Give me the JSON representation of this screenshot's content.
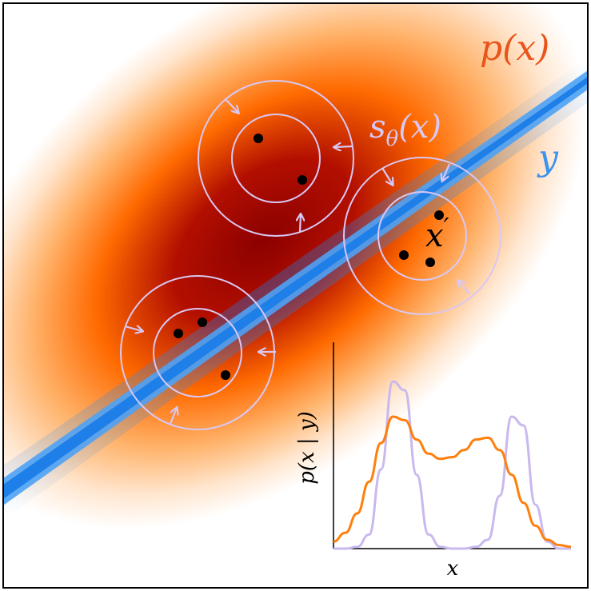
{
  "labels": {
    "density": "p(x)",
    "score": "s",
    "score_sub": "θ",
    "score_arg": "(x)",
    "measurement": "y",
    "sample": "x",
    "sample_prime": "′",
    "inset_ylabel": "p(x | y)",
    "inset_xlabel": "x"
  },
  "colors": {
    "density_core": "#9e0000",
    "density_mid": "#ff6a00",
    "density_edge": "#ffffff",
    "line": "#2f8cf0",
    "circles": "#d8c8f4",
    "points": "#000000",
    "posterior": "#ff7f0e",
    "prior_fit": "#c9b9ee"
  },
  "icons": [
    "inward-arrow-icon"
  ],
  "inset_chart": {
    "type": "line",
    "xlabel": "x",
    "ylabel": "p(x | y)",
    "series": [
      {
        "color": "#c9b9ee",
        "x": [
          0,
          0.05,
          0.1,
          0.15,
          0.2,
          0.25,
          0.3,
          0.35,
          0.4,
          0.45,
          0.5,
          0.55,
          0.6,
          0.65,
          0.7,
          0.75,
          0.8,
          0.85,
          0.9,
          0.95,
          1
        ],
        "y": [
          0,
          0,
          0.01,
          0.08,
          0.45,
          0.95,
          0.9,
          0.42,
          0.08,
          0.01,
          0,
          0,
          0.01,
          0.05,
          0.3,
          0.75,
          0.7,
          0.25,
          0.04,
          0,
          0
        ]
      },
      {
        "color": "#ff7f0e",
        "x": [
          0,
          0.05,
          0.1,
          0.15,
          0.2,
          0.25,
          0.3,
          0.35,
          0.4,
          0.45,
          0.5,
          0.55,
          0.6,
          0.65,
          0.7,
          0.75,
          0.8,
          0.85,
          0.9,
          0.95,
          1
        ],
        "y": [
          0.04,
          0.09,
          0.2,
          0.38,
          0.6,
          0.75,
          0.73,
          0.62,
          0.54,
          0.51,
          0.52,
          0.56,
          0.62,
          0.63,
          0.56,
          0.42,
          0.26,
          0.13,
          0.05,
          0.02,
          0.01
        ]
      }
    ]
  }
}
